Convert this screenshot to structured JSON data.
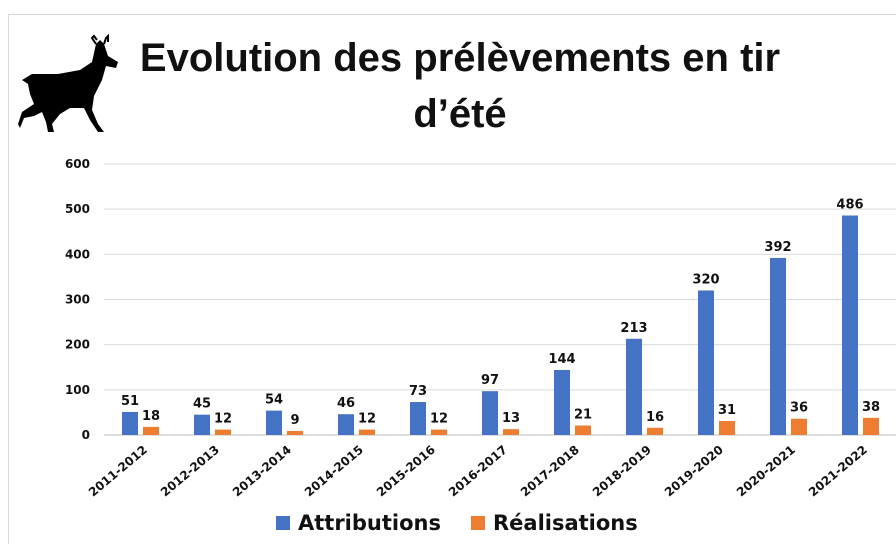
{
  "chart_data": {
    "type": "bar",
    "title": "Evolution des prélèvements en tir d’été",
    "categories": [
      "2011-2012",
      "2012-2013",
      "2013-2014",
      "2014-2015",
      "2015-2016",
      "2016-2017",
      "2017-2018",
      "2018-2019",
      "2019-2020",
      "2020-2021",
      "2021-2022"
    ],
    "series": [
      {
        "name": "Attributions",
        "color": "#4472c4",
        "values": [
          51,
          45,
          54,
          46,
          73,
          97,
          144,
          213,
          320,
          392,
          486
        ]
      },
      {
        "name": "Réalisations",
        "color": "#ed7d31",
        "values": [
          18,
          12,
          9,
          12,
          12,
          13,
          21,
          16,
          31,
          36,
          38
        ]
      }
    ],
    "ylim": [
      0,
      600
    ],
    "yticks": [
      0,
      100,
      200,
      300,
      400,
      500,
      600
    ],
    "grid": true
  }
}
